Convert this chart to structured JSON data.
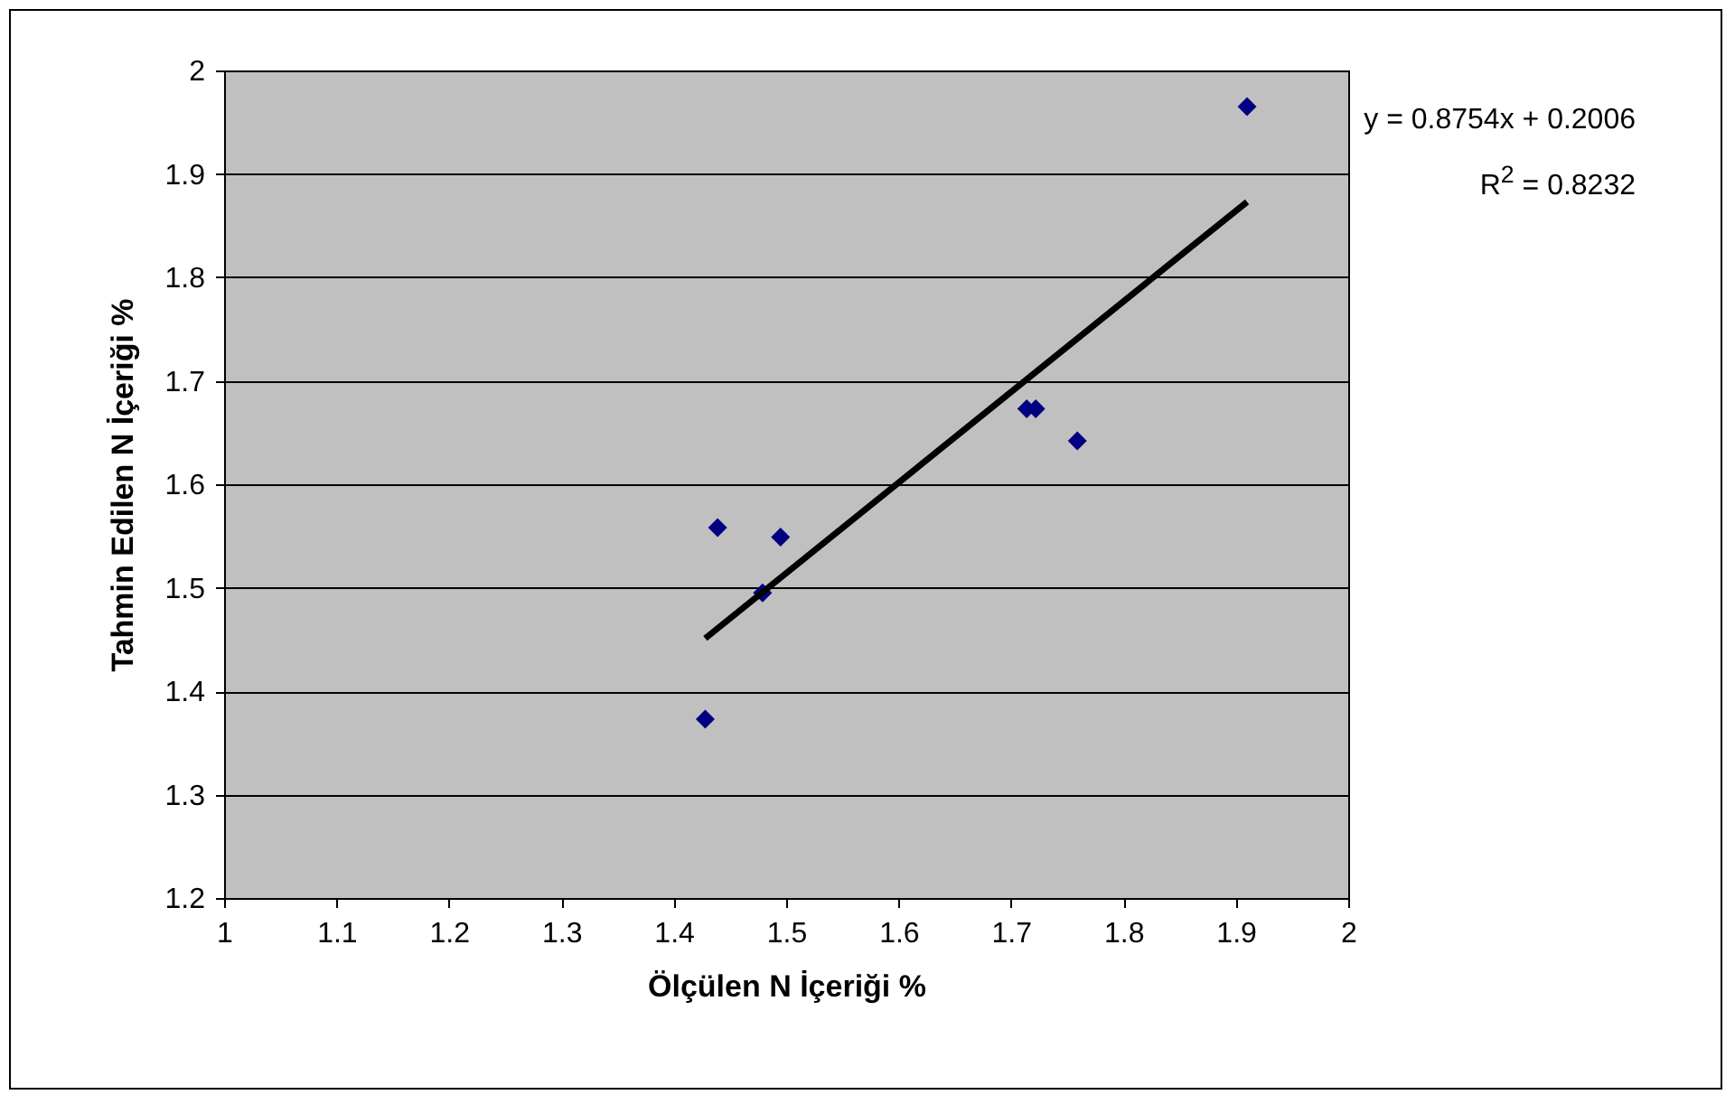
{
  "chart_data": {
    "type": "scatter",
    "xlabel": "Ölçülen N İçeriği %",
    "ylabel": "Tahmin Edilen N İçeriği %",
    "xlim": [
      1,
      2
    ],
    "xticks": [
      1,
      1.1,
      1.2,
      1.3,
      1.4,
      1.5,
      1.6,
      1.7,
      1.8,
      1.9,
      2
    ],
    "ylim": [
      1.2,
      2
    ],
    "yticks": [
      1.2,
      1.3,
      1.4,
      1.5,
      1.6,
      1.7,
      1.8,
      1.9,
      2
    ],
    "grid": "y",
    "series": [
      {
        "marker": "diamond",
        "color": "#000080",
        "x": [
          1.428,
          1.439,
          1.479,
          1.495,
          1.714,
          1.722,
          1.759,
          1.91
        ],
        "values": [
          1.373,
          1.558,
          1.495,
          1.549,
          1.673,
          1.673,
          1.642,
          1.965
        ]
      },
      {
        "type": "line",
        "color": "#000000",
        "x": [
          1.428,
          1.91
        ],
        "values": [
          1.451,
          1.873
        ]
      }
    ],
    "annotations": [
      "y = 0.8754x + 0.2006",
      "R$^{2}$ = 0.8232"
    ]
  }
}
